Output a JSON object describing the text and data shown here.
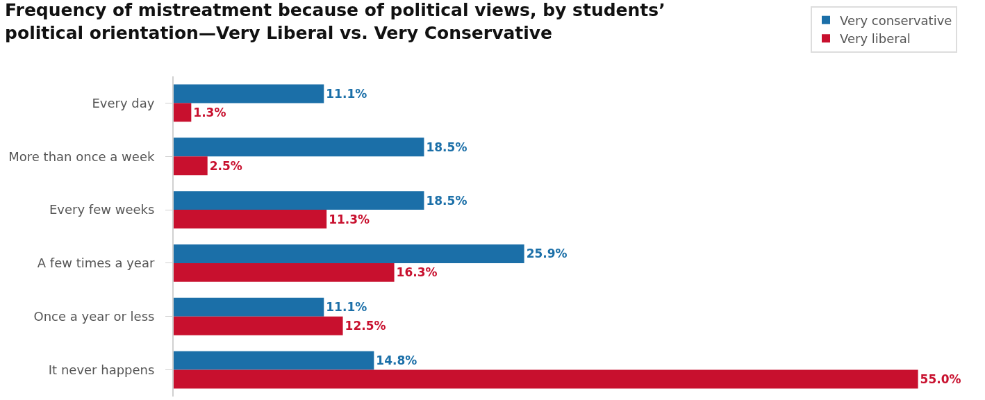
{
  "chart_data": {
    "type": "bar",
    "orientation": "horizontal",
    "title": "Frequency of mistreatment because of political views, by students’ political orientation—Very Liberal vs. Very Conservative",
    "categories": [
      "Every day",
      "More than once a week",
      "Every few weeks",
      "A few times a year",
      "Once a year or less",
      "It never happens"
    ],
    "series": [
      {
        "name": "Very conservative",
        "color": "#1b6fa8",
        "values": [
          11.1,
          18.5,
          18.5,
          25.9,
          11.1,
          14.8
        ],
        "value_labels": [
          "11.1%",
          "18.5%",
          "18.5%",
          "25.9%",
          "11.1%",
          "14.8%"
        ]
      },
      {
        "name": "Very liberal",
        "color": "#c8102e",
        "values": [
          1.3,
          2.5,
          11.3,
          16.3,
          12.5,
          55.0
        ],
        "value_labels": [
          "1.3%",
          "2.5%",
          "11.3%",
          "16.3%",
          "12.5%",
          "55.0%"
        ]
      }
    ],
    "tick_labels": "y",
    "legend": "top right"
  }
}
